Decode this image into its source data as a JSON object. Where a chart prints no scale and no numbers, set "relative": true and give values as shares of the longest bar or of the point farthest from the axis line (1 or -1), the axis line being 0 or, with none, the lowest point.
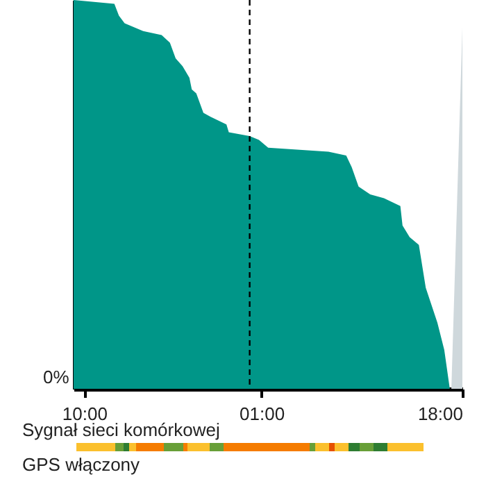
{
  "chart_data": {
    "type": "area",
    "relative": true,
    "xlim": [
      "--01-01T09:06",
      "--01-02T18:00"
    ],
    "xticks": [
      {
        "value": "--01-01T10:00",
        "label": "10:00"
      },
      {
        "value": "--01-02T01:00",
        "label": "01:00"
      },
      {
        "value": "--01-02T18:00",
        "label": "18:00"
      }
    ],
    "series": [
      {
        "color": "#009688",
        "x": [
          "--01-01T09:06",
          "--01-01T12:33",
          "--01-01T12:56",
          "--01-01T13:25",
          "--01-01T14:59",
          "--01-01T16:33",
          "--01-01T17:15",
          "--01-01T17:44",
          "--01-01T18:19",
          "--01-01T18:54",
          "--01-01T19:06",
          "--01-01T19:29",
          "--01-01T20:05",
          "--01-01T20:40",
          "--01-01T22:02",
          "--01-01T22:14",
          "--01-02T00:00",
          "--01-02T00:47",
          "--01-02T01:34",
          "--01-02T06:40",
          "--01-02T08:10",
          "--01-02T08:38",
          "--01-02T09:13",
          "--01-02T10:12",
          "--01-02T11:22",
          "--01-02T12:45",
          "--01-02T12:56",
          "--01-02T13:32",
          "--01-02T14:19",
          "--01-02T14:54",
          "--01-02T15:53",
          "--01-02T16:28",
          "--01-02T16:56"
        ],
        "values": [
          1.0,
          0.99,
          0.96,
          0.94,
          0.92,
          0.91,
          0.89,
          0.85,
          0.83,
          0.8,
          0.77,
          0.76,
          0.71,
          0.7,
          0.68,
          0.66,
          0.65,
          0.64,
          0.62,
          0.61,
          0.6,
          0.57,
          0.52,
          0.5,
          0.49,
          0.47,
          0.42,
          0.39,
          0.37,
          0.26,
          0.17,
          0.1,
          0.0
        ]
      },
      {
        "color": "#cfd8dc",
        "x": [
          "--01-02T17:04",
          "--01-02T18:00"
        ],
        "values": [
          0,
          0.93
        ]
      }
    ],
    "ref_lines": [
      {
        "axis": "x",
        "value": "--01-02T00:00",
        "line_style": "dashed",
        "color": "#000000"
      }
    ],
    "grid": false,
    "annotations": [
      "0%",
      "Sygnał sieci komórkowej",
      "GPS włączony"
    ]
  }
}
